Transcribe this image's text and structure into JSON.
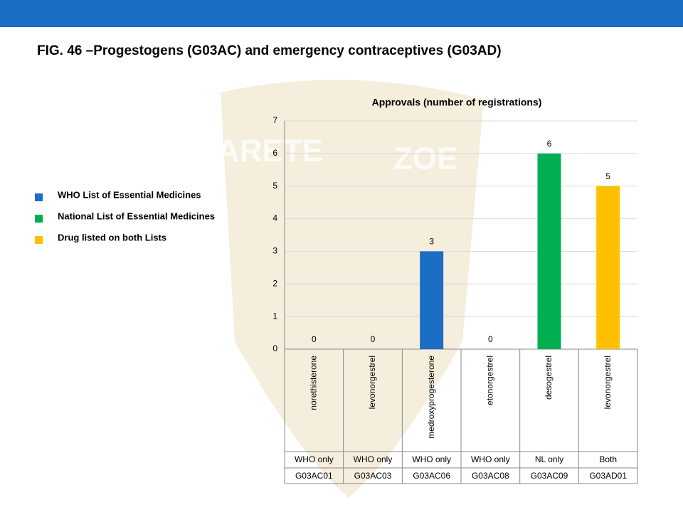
{
  "title": "FIG. 46 –Progestogens (G03AC) and emergency contraceptives (G03AD)",
  "watermark": [
    "ARETE",
    "ZOE"
  ],
  "chart_data": {
    "type": "bar",
    "title": "Approvals (number of registrations)",
    "categories": [
      "norethisterone",
      "levonorgestrel",
      "medroxyprogesterone",
      "etonorgestrel",
      "desogestrel",
      "levonorgestrel"
    ],
    "groups": [
      "WHO only",
      "WHO only",
      "WHO only",
      "WHO only",
      "NL only",
      "Both"
    ],
    "codes": [
      "G03AC01",
      "G03AC03",
      "G03AC06",
      "G03AC08",
      "G03AC09",
      "G03AD01"
    ],
    "values": [
      0,
      0,
      3,
      0,
      6,
      5
    ],
    "colors": [
      "#1a6fc4",
      "#1a6fc4",
      "#1a6fc4",
      "#1a6fc4",
      "#00b050",
      "#ffc000"
    ],
    "legend": [
      {
        "name": "WHO List of Essential Medicines",
        "color": "#1a6fc4"
      },
      {
        "name": "National List of Essential Medicines",
        "color": "#00b050"
      },
      {
        "name": "Drug listed on both Lists",
        "color": "#ffc000"
      }
    ],
    "ylim": [
      0,
      7
    ],
    "yticks": [
      0,
      1,
      2,
      3,
      4,
      5,
      6,
      7
    ],
    "grid": true
  }
}
